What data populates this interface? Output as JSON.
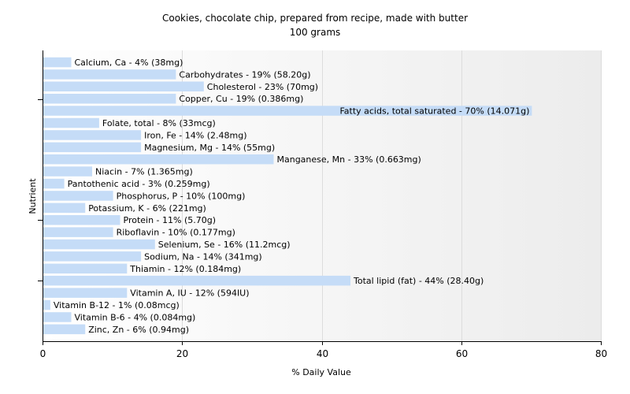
{
  "chart_data": {
    "type": "bar",
    "orientation": "horizontal",
    "title": "Cookies, chocolate chip, prepared from recipe, made with butter",
    "subtitle": "100 grams",
    "xlabel": "% Daily Value",
    "ylabel": "Nutrient",
    "xlim": [
      0,
      80
    ],
    "xticks": [
      "0",
      "20",
      "40",
      "60",
      "80"
    ],
    "grid": true,
    "bar_color": "#c5dcf7",
    "categories": [
      "Calcium, Ca",
      "Carbohydrates",
      "Cholesterol",
      "Copper, Cu",
      "Fatty acids, total saturated",
      "Folate, total",
      "Iron, Fe",
      "Magnesium, Mg",
      "Manganese, Mn",
      "Niacin",
      "Pantothenic acid",
      "Phosphorus, P",
      "Potassium, K",
      "Protein",
      "Riboflavin",
      "Selenium, Se",
      "Sodium, Na",
      "Thiamin",
      "Total lipid (fat)",
      "Vitamin A, IU",
      "Vitamin B-12",
      "Vitamin B-6",
      "Zinc, Zn"
    ],
    "values": [
      4,
      19,
      23,
      19,
      70,
      8,
      14,
      14,
      33,
      7,
      3,
      10,
      6,
      11,
      10,
      16,
      14,
      12,
      44,
      12,
      1,
      4,
      6
    ],
    "labels": [
      "Calcium, Ca - 4% (38mg)",
      "Carbohydrates - 19% (58.20g)",
      "Cholesterol - 23% (70mg)",
      "Copper, Cu - 19% (0.386mg)",
      "Fatty acids, total saturated - 70% (14.071g)",
      "Folate, total - 8% (33mcg)",
      "Iron, Fe - 14% (2.48mg)",
      "Magnesium, Mg - 14% (55mg)",
      "Manganese, Mn - 33% (0.663mg)",
      "Niacin - 7% (1.365mg)",
      "Pantothenic acid - 3% (0.259mg)",
      "Phosphorus, P - 10% (100mg)",
      "Potassium, K - 6% (221mg)",
      "Protein - 11% (5.70g)",
      "Riboflavin - 10% (0.177mg)",
      "Selenium, Se - 16% (11.2mcg)",
      "Sodium, Na - 14% (341mg)",
      "Thiamin - 12% (0.184mg)",
      "Total lipid (fat) - 44% (28.40g)",
      "Vitamin A, IU - 12% (594IU)",
      "Vitamin B-12 - 1% (0.08mcg)",
      "Vitamin B-6 - 4% (0.084mg)",
      "Zinc, Zn - 6% (0.94mg)"
    ]
  }
}
